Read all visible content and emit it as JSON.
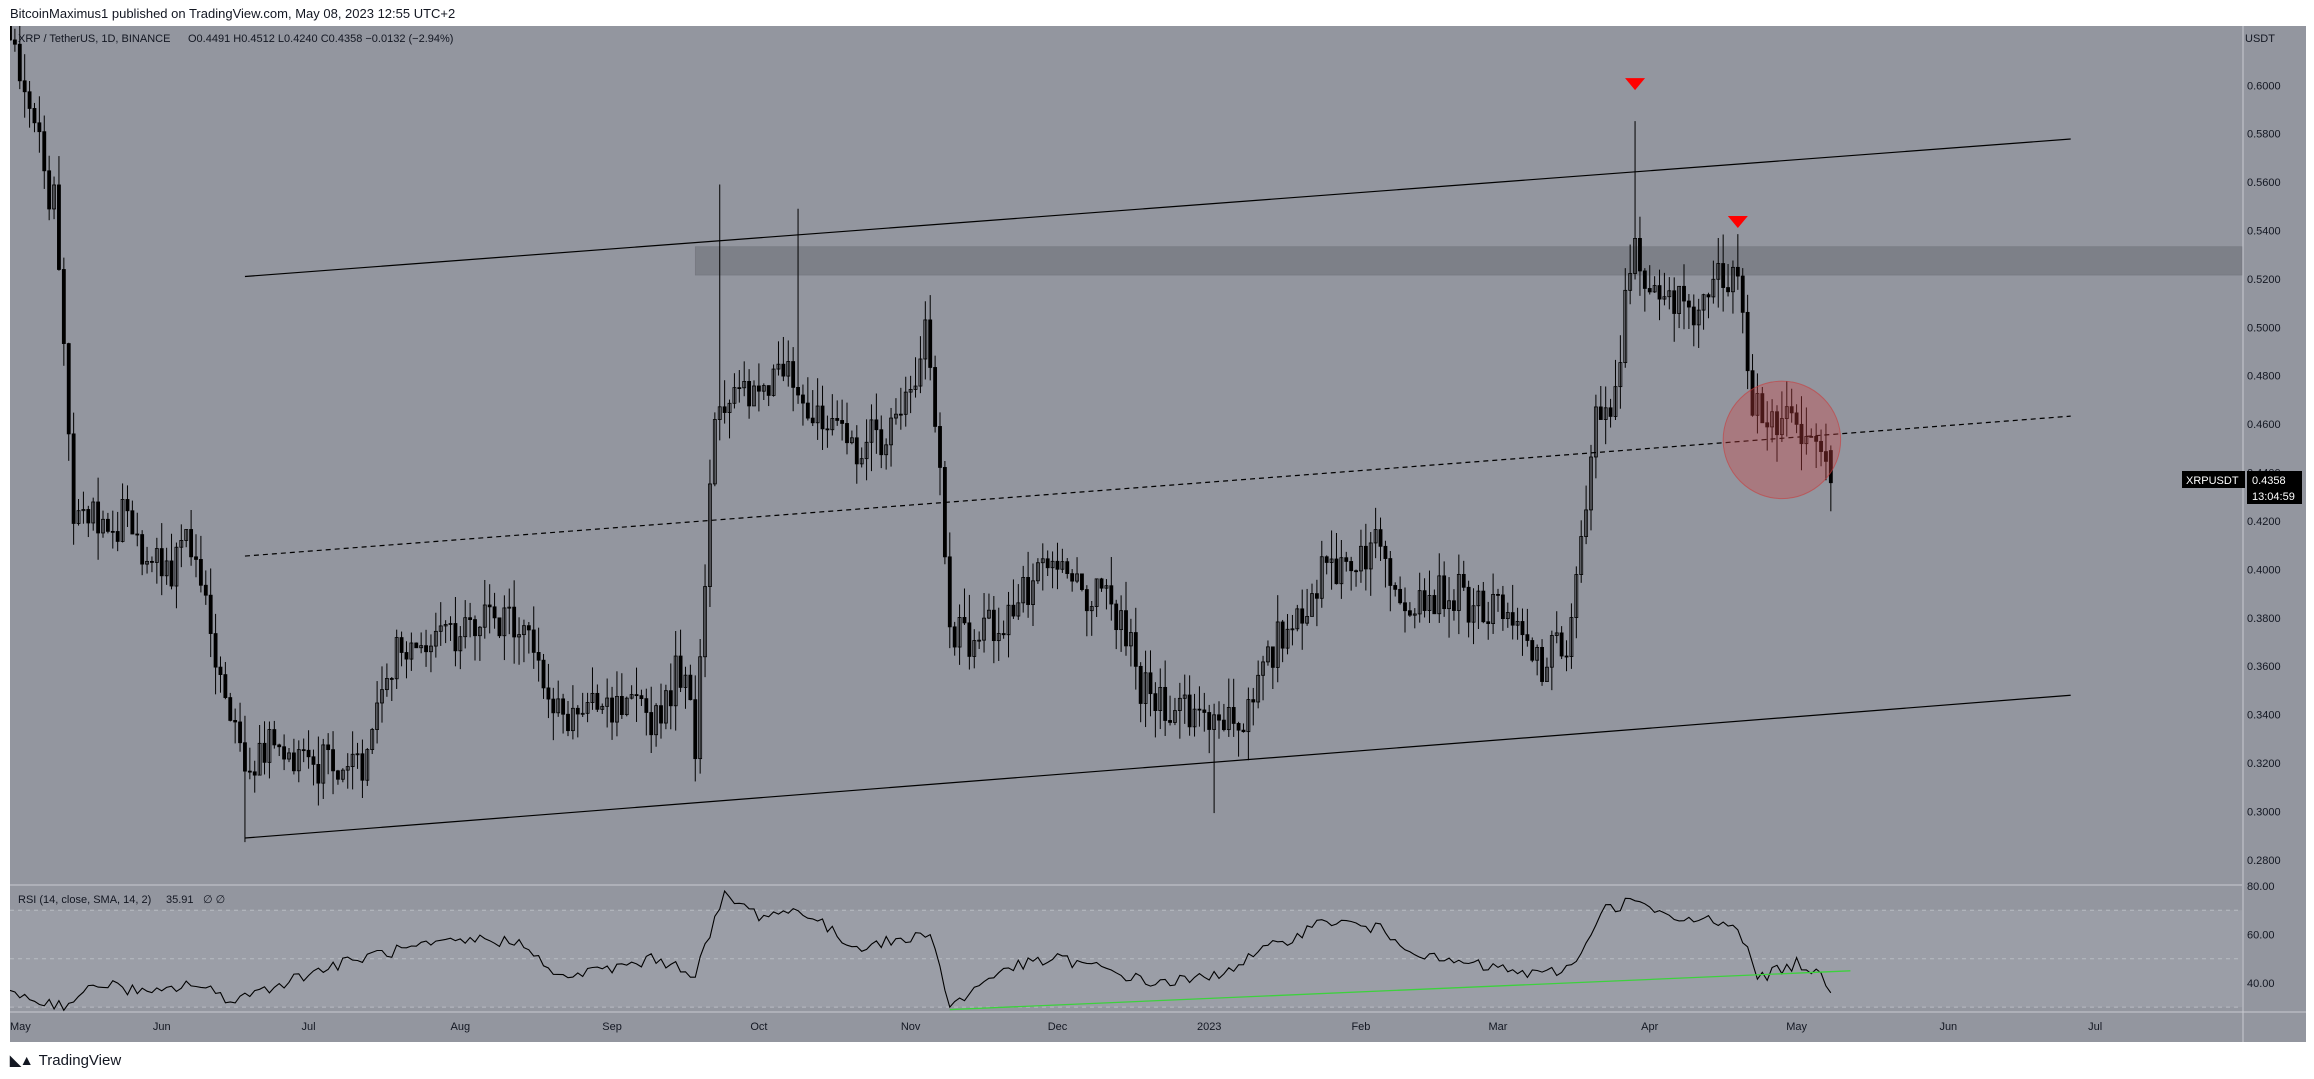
{
  "header": {
    "publisher_line": "BitcoinMaximus1 published on TradingView.com, May 08, 2023 12:55 UTC+2"
  },
  "footer": {
    "brand": "TradingView"
  },
  "symbol_bar": {
    "symbol": "XRP / TetherUS, 1D, BINANCE",
    "ohlc": "O0.4491 H0.4512 L0.4240 C0.4358 −0.0132 (−2.94%)"
  },
  "rsi_panel": {
    "label": "RSI (14, close, SMA, 14, 2)",
    "value": "35.91",
    "extra": "∅ ∅"
  },
  "price_axis": {
    "currency": "USDT",
    "ticks": [
      "0.6000",
      "0.5800",
      "0.5600",
      "0.5400",
      "0.5200",
      "0.5000",
      "0.4800",
      "0.4600",
      "0.4400",
      "0.4200",
      "0.4000",
      "0.3800",
      "0.3600",
      "0.3400",
      "0.3200",
      "0.3000",
      "0.2800"
    ]
  },
  "rsi_axis": {
    "ticks": [
      "80.00",
      "60.00",
      "40.00"
    ]
  },
  "time_axis": {
    "ticks": [
      "May",
      "Jun",
      "Jul",
      "Aug",
      "Sep",
      "Oct",
      "Nov",
      "Dec",
      "2023",
      "Feb",
      "Mar",
      "Apr",
      "May",
      "Jun",
      "Jul"
    ]
  },
  "last_price_label": {
    "symbol": "XRPUSDT",
    "price": "0.4358",
    "countdown": "13:04:59"
  },
  "colors": {
    "chart_bg": "#93969f",
    "candle": "#000000",
    "resistance_zone": "#7a7d85",
    "marker_red": "#ff0000",
    "circle_fill": "rgba(210,70,70,0.35)",
    "rsi_trendline": "#3dd13d",
    "axis_text": "#131722"
  },
  "chart_data": [
    {
      "type": "candlestick",
      "title": "XRP / TetherUS, 1D, BINANCE",
      "ylim": [
        0.27,
        0.6245
      ],
      "y_tick_step": 0.02,
      "x_range": [
        "2022-05-01",
        "2023-07-31"
      ],
      "price_path": [
        [
          "2022-05-01",
          0.62
        ],
        [
          "2022-05-10",
          0.55
        ],
        [
          "2022-05-14",
          0.42
        ],
        [
          "2022-05-24",
          0.42
        ],
        [
          "2022-06-02",
          0.4
        ],
        [
          "2022-06-07",
          0.41
        ],
        [
          "2022-06-13",
          0.36
        ],
        [
          "2022-06-18",
          0.31
        ],
        [
          "2022-06-23",
          0.33
        ],
        [
          "2022-07-01",
          0.32
        ],
        [
          "2022-07-12",
          0.32
        ],
        [
          "2022-07-20",
          0.37
        ],
        [
          "2022-07-28",
          0.37
        ],
        [
          "2022-08-05",
          0.38
        ],
        [
          "2022-08-15",
          0.38
        ],
        [
          "2022-08-19",
          0.34
        ],
        [
          "2022-08-30",
          0.34
        ],
        [
          "2022-09-10",
          0.34
        ],
        [
          "2022-09-15",
          0.36
        ],
        [
          "2022-09-18",
          0.33
        ],
        [
          "2022-09-22",
          0.47
        ],
        [
          "2022-09-30",
          0.47
        ],
        [
          "2022-10-07",
          0.49
        ],
        [
          "2022-10-12",
          0.46
        ],
        [
          "2022-10-20",
          0.45
        ],
        [
          "2022-10-30",
          0.46
        ],
        [
          "2022-11-04",
          0.5
        ],
        [
          "2022-11-07",
          0.44
        ],
        [
          "2022-11-09",
          0.38
        ],
        [
          "2022-11-12",
          0.37
        ],
        [
          "2022-11-20",
          0.38
        ],
        [
          "2022-11-30",
          0.4
        ],
        [
          "2022-12-07",
          0.39
        ],
        [
          "2022-12-14",
          0.38
        ],
        [
          "2022-12-18",
          0.35
        ],
        [
          "2022-12-30",
          0.34
        ],
        [
          "2023-01-09",
          0.34
        ],
        [
          "2023-01-15",
          0.37
        ],
        [
          "2023-01-25",
          0.4
        ],
        [
          "2023-02-04",
          0.41
        ],
        [
          "2023-02-10",
          0.39
        ],
        [
          "2023-02-20",
          0.39
        ],
        [
          "2023-03-02",
          0.38
        ],
        [
          "2023-03-10",
          0.36
        ],
        [
          "2023-03-15",
          0.37
        ],
        [
          "2023-03-18",
          0.41
        ],
        [
          "2023-03-21",
          0.46
        ],
        [
          "2023-03-24",
          0.46
        ],
        [
          "2023-03-29",
          0.54
        ],
        [
          "2023-04-01",
          0.51
        ],
        [
          "2023-04-10",
          0.51
        ],
        [
          "2023-04-16",
          0.52
        ],
        [
          "2023-04-19",
          0.53
        ],
        [
          "2023-04-22",
          0.47
        ],
        [
          "2023-04-28",
          0.46
        ],
        [
          "2023-05-05",
          0.45
        ],
        [
          "2023-05-08",
          0.4358
        ]
      ],
      "notable_extremes": [
        {
          "date": "2022-06-18",
          "low": 0.2873
        },
        {
          "date": "2022-09-23",
          "high": 0.559
        },
        {
          "date": "2022-10-09",
          "high": 0.549
        },
        {
          "date": "2023-01-02",
          "low": 0.2993
        },
        {
          "date": "2023-03-29",
          "high": 0.5852
        },
        {
          "date": "2023-04-19",
          "high": 0.5385
        }
      ],
      "last_candle": {
        "date": "2023-05-08",
        "open": 0.4491,
        "high": 0.4512,
        "low": 0.424,
        "close": 0.4358
      },
      "annotations": {
        "channel_upper": [
          [
            "2022-06-18",
            0.521
          ],
          [
            "2023-06-26",
            0.5778
          ]
        ],
        "channel_middle_dashed": [
          [
            "2022-06-18",
            0.4055
          ],
          [
            "2023-06-26",
            0.4633
          ]
        ],
        "channel_lower": [
          [
            "2022-06-18",
            0.289
          ],
          [
            "2023-06-26",
            0.348
          ]
        ],
        "resistance_zone": {
          "from": "2022-09-18",
          "to": "2023-07-31",
          "low": 0.5216,
          "high": 0.5333
        },
        "bearish_markers": [
          {
            "date": "2023-03-29",
            "price": 0.6005
          },
          {
            "date": "2023-04-19",
            "price": 0.5435
          }
        ],
        "highlight_circle": {
          "date": "2023-04-28",
          "price": 0.4535,
          "radius_days": 12
        }
      }
    },
    {
      "type": "line",
      "title": "RSI (14, close, SMA, 14, 2)",
      "ylim": [
        28,
        80
      ],
      "bands": [
        30,
        50,
        70
      ],
      "last_value": 35.91,
      "rsi_path": [
        [
          "2022-05-01",
          38
        ],
        [
          "2022-05-05",
          33
        ],
        [
          "2022-05-12",
          31
        ],
        [
          "2022-05-20",
          40
        ],
        [
          "2022-05-30",
          35
        ],
        [
          "2022-06-07",
          40
        ],
        [
          "2022-06-15",
          33
        ],
        [
          "2022-06-20",
          36
        ],
        [
          "2022-07-01",
          44
        ],
        [
          "2022-07-15",
          52
        ],
        [
          "2022-07-25",
          55
        ],
        [
          "2022-08-05",
          58
        ],
        [
          "2022-08-15",
          56
        ],
        [
          "2022-08-20",
          42
        ],
        [
          "2022-09-01",
          46
        ],
        [
          "2022-09-10",
          50
        ],
        [
          "2022-09-18",
          44
        ],
        [
          "2022-09-24",
          76
        ],
        [
          "2022-10-01",
          68
        ],
        [
          "2022-10-10",
          70
        ],
        [
          "2022-10-20",
          55
        ],
        [
          "2022-11-01",
          58
        ],
        [
          "2022-11-05",
          62
        ],
        [
          "2022-11-09",
          30
        ],
        [
          "2022-11-20",
          46
        ],
        [
          "2022-12-01",
          50
        ],
        [
          "2022-12-10",
          46
        ],
        [
          "2022-12-20",
          40
        ],
        [
          "2023-01-01",
          42
        ],
        [
          "2023-01-15",
          56
        ],
        [
          "2023-01-25",
          66
        ],
        [
          "2023-02-05",
          62
        ],
        [
          "2023-02-15",
          50
        ],
        [
          "2023-03-01",
          46
        ],
        [
          "2023-03-10",
          43
        ],
        [
          "2023-03-17",
          48
        ],
        [
          "2023-03-22",
          70
        ],
        [
          "2023-03-29",
          74
        ],
        [
          "2023-04-05",
          66
        ],
        [
          "2023-04-15",
          66
        ],
        [
          "2023-04-19",
          64
        ],
        [
          "2023-04-23",
          42
        ],
        [
          "2023-05-01",
          48
        ],
        [
          "2023-05-05",
          45
        ],
        [
          "2023-05-08",
          35.91
        ]
      ],
      "trendline": [
        [
          "2022-11-09",
          29
        ],
        [
          "2023-05-12",
          45
        ]
      ]
    }
  ]
}
